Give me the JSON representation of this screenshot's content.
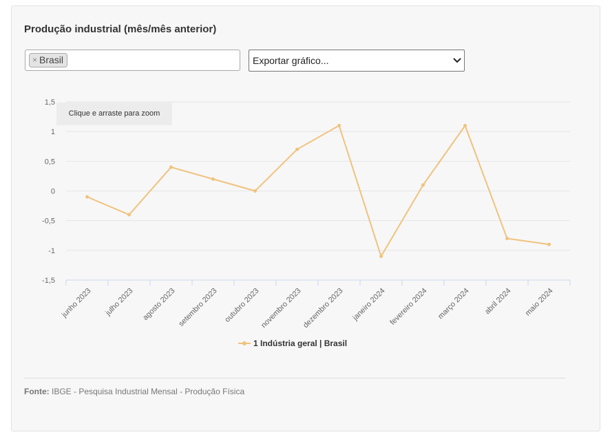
{
  "header": {
    "title": "Produção industrial (mês/mês anterior)"
  },
  "filter": {
    "tags": [
      "Brasil"
    ],
    "remove_symbol": "×"
  },
  "export": {
    "label": "Exportar gráfico..."
  },
  "zoom_hint": "Clique e arraste para zoom",
  "footer": {
    "source_label": "Fonte:",
    "source_text": "IBGE - Pesquisa Industrial Mensal - Produção Física"
  },
  "colors": {
    "series": "#f1c27d",
    "grid": "#e6e6e6",
    "axis": "#ccd6eb"
  },
  "chart_data": {
    "type": "line",
    "title": "Produção industrial (mês/mês anterior)",
    "categories": [
      "junho 2023",
      "julho 2023",
      "agosto 2023",
      "setembro 2023",
      "outubro 2023",
      "novembro 2023",
      "dezembro 2023",
      "janeiro 2024",
      "fevereiro 2024",
      "março 2024",
      "abril 2024",
      "maio 2024"
    ],
    "series": [
      {
        "name": "1 Indústria geral | Brasil",
        "values": [
          -0.1,
          -0.4,
          0.4,
          0.2,
          0.0,
          0.7,
          1.1,
          -1.1,
          0.1,
          1.1,
          -0.8,
          -0.9
        ]
      }
    ],
    "yticks": [
      "1,5",
      "1",
      "0,5",
      "0",
      "-0,5",
      "-1",
      "-1,5"
    ],
    "ylim": [
      -1.5,
      1.5
    ],
    "grid": true,
    "legend": "bottom-center"
  }
}
